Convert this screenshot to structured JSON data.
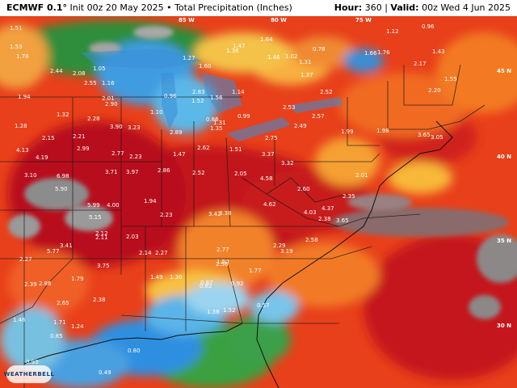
{
  "header": {
    "model": "ECMWF 0.1°",
    "init": "Init 00z 20 May 2025",
    "product": "Total Precipitation (Inches)",
    "hour_label": "Hour:",
    "hour": "360",
    "valid_label": "Valid:",
    "valid": "00z Wed 4 Jun 2025"
  },
  "map": {
    "lon_ticks": [
      "85 W",
      "80 W",
      "75 W"
    ],
    "lat_ticks": [
      "45 N",
      "40 N",
      "35 N",
      "30 N"
    ],
    "values": [
      "1.51",
      "1.53",
      "1.78",
      "2.44",
      "2.08",
      "1.05",
      "1.16",
      "2.55",
      "1.94",
      "2.01",
      "2.90",
      "1.32",
      "2.28",
      "1.28",
      "2.15",
      "3.90",
      "3.23",
      "2.21",
      "4.13",
      "4.19",
      "2.99",
      "2.77",
      "2.23",
      "3.71",
      "3.97",
      "2.86",
      "3.10",
      "6.98",
      "5.90",
      "5.99",
      "4.00",
      "1.94",
      "2.23",
      "5.15",
      "5.77",
      "3.41",
      "2.12",
      "2.11",
      "2.03",
      "2.27",
      "3.75",
      "2.14",
      "2.27",
      "1.49",
      "1.30",
      "2.86",
      "2.39",
      "1.79",
      "2.38",
      "2.65",
      "1.46",
      "1.71",
      "1.24",
      "0.93",
      "0.85",
      "0.80",
      "0.49",
      "1.10",
      "0.96",
      "1.52",
      "0.86",
      "1.31",
      "2.83",
      "2.89",
      "2.62",
      "1.47",
      "1.51",
      "2.52",
      "2.05",
      "3.37",
      "4.58",
      "2.75",
      "3.32",
      "2.49",
      "2.57",
      "2.53",
      "2.52",
      "2.60",
      "4.62",
      "3.42",
      "3.38",
      "4.03",
      "4.37",
      "2.38",
      "2.35",
      "3.65",
      "2.58",
      "3.19",
      "2.77",
      "2.29",
      "1.77",
      "1.50",
      "2.56",
      "0.87",
      "0.92",
      "0.57",
      "0.82",
      "1.38",
      "1.52",
      "1.99",
      "1.98",
      "2.01",
      "3.05",
      "3.65",
      "1.37",
      "1.31",
      "0.78",
      "1.02",
      "1.66",
      "1.76",
      "1.12",
      "0.96",
      "2.17",
      "1.43",
      "1.55",
      "2.20",
      "1.47",
      "1.36",
      "1.64",
      "1.46",
      "1.60",
      "1.27",
      "1.14",
      "1.56",
      "0.99",
      "1.35"
    ]
  },
  "logo": "WEATHERBELL"
}
